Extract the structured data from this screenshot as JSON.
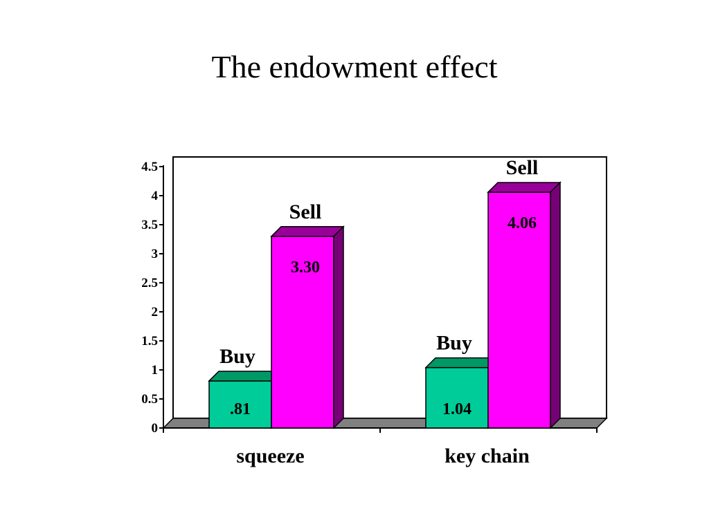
{
  "slide": {
    "title": "The endowment effect"
  },
  "chart_data": {
    "type": "bar",
    "categories": [
      "squeeze",
      "key chain"
    ],
    "series": [
      {
        "label": "Buy",
        "values": [
          0.81,
          1.04
        ],
        "value_labels": [
          ".81",
          "1.04"
        ],
        "color": "#00CC99",
        "top_color": "#009966",
        "side_color": "#007755"
      },
      {
        "label": "Sell",
        "values": [
          3.3,
          4.06
        ],
        "value_labels": [
          "3.30",
          "4.06"
        ],
        "color": "#FF00FF",
        "top_color": "#990099",
        "side_color": "#770077"
      }
    ],
    "yticks": [
      "0",
      "0.5",
      "1",
      "1.5",
      "2",
      "2.5",
      "3",
      "3.5",
      "4",
      "4.5"
    ],
    "ylim": [
      0,
      4.5
    ],
    "legend": "none",
    "grid": false,
    "style": "3d",
    "floor_color": "#808080"
  }
}
